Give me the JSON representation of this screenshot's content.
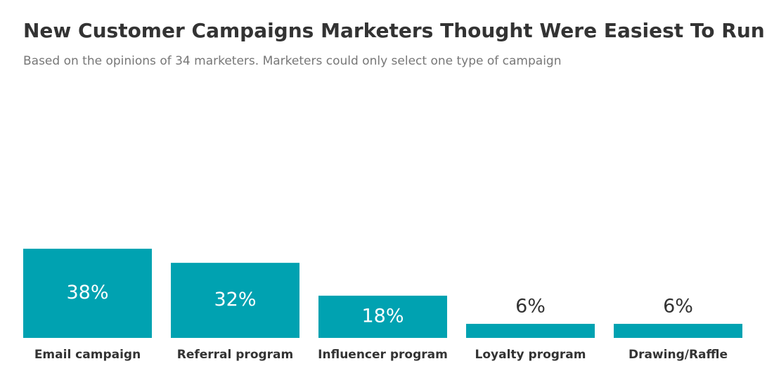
{
  "chart_data": {
    "type": "bar",
    "title": "New Customer Campaigns Marketers Thought Were Easiest To Run",
    "subtitle": "Based on the opinions of 34 marketers. Marketers could only select one type of campaign",
    "categories": [
      "Email campaign",
      "Referral program",
      "Influencer program",
      "Loyalty program",
      "Drawing/Raffle"
    ],
    "values": [
      38,
      32,
      18,
      6,
      6
    ],
    "value_labels": [
      "38%",
      "32%",
      "18%",
      "6%",
      "6%"
    ],
    "color": "#00a2b1"
  }
}
